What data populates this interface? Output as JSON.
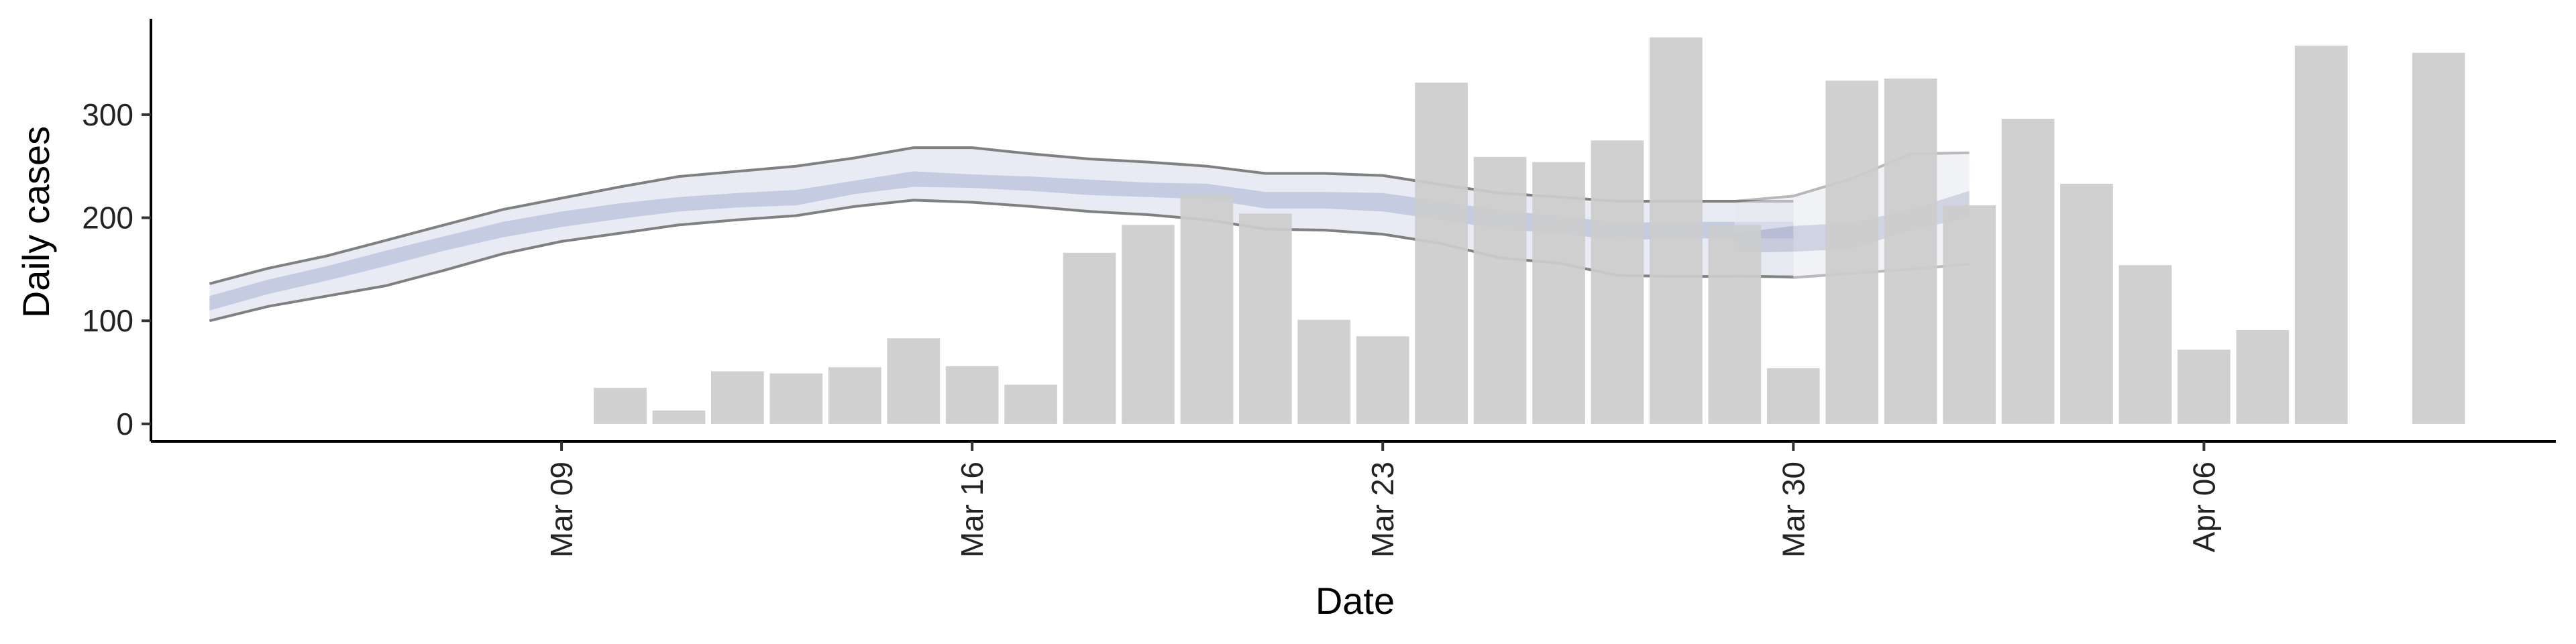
{
  "chart_data": {
    "type": "bar",
    "title": "",
    "xlabel": "Date",
    "ylabel": "Daily cases",
    "ylim": [
      -17,
      393
    ],
    "xlim": [
      "2020-03-02",
      "2020-04-12"
    ],
    "y_ticks": [
      0,
      100,
      200,
      300
    ],
    "x_ticks": [
      {
        "date": "2020-03-09",
        "label": "Mar 09"
      },
      {
        "date": "2020-03-16",
        "label": "Mar 16"
      },
      {
        "date": "2020-03-23",
        "label": "Mar 23"
      },
      {
        "date": "2020-03-30",
        "label": "Mar 30"
      },
      {
        "date": "2020-04-06",
        "label": "Apr 06"
      }
    ],
    "grid": false,
    "legend": "none",
    "colors": {
      "bars": "#cccccc",
      "band_outer": "#e9ebf4",
      "band_inner": "#c5cbe0",
      "bound_line": "#808080",
      "axis": "#000000"
    },
    "bars": [
      {
        "date": "2020-03-10",
        "value": 35
      },
      {
        "date": "2020-03-11",
        "value": 13
      },
      {
        "date": "2020-03-12",
        "value": 51
      },
      {
        "date": "2020-03-13",
        "value": 49
      },
      {
        "date": "2020-03-14",
        "value": 55
      },
      {
        "date": "2020-03-15",
        "value": 83
      },
      {
        "date": "2020-03-16",
        "value": 56
      },
      {
        "date": "2020-03-17",
        "value": 38
      },
      {
        "date": "2020-03-18",
        "value": 166
      },
      {
        "date": "2020-03-19",
        "value": 193
      },
      {
        "date": "2020-03-20",
        "value": 223
      },
      {
        "date": "2020-03-21",
        "value": 204
      },
      {
        "date": "2020-03-22",
        "value": 101
      },
      {
        "date": "2020-03-23",
        "value": 85
      },
      {
        "date": "2020-03-24",
        "value": 331
      },
      {
        "date": "2020-03-25",
        "value": 259
      },
      {
        "date": "2020-03-26",
        "value": 254
      },
      {
        "date": "2020-03-27",
        "value": 275
      },
      {
        "date": "2020-03-28",
        "value": 375
      },
      {
        "date": "2020-03-29",
        "value": 193
      },
      {
        "date": "2020-03-30",
        "value": 54
      },
      {
        "date": "2020-03-31",
        "value": 333
      },
      {
        "date": "2020-04-01",
        "value": 335
      },
      {
        "date": "2020-04-02",
        "value": 212
      },
      {
        "date": "2020-04-03",
        "value": 296
      },
      {
        "date": "2020-04-04",
        "value": 233
      },
      {
        "date": "2020-04-05",
        "value": 154
      },
      {
        "date": "2020-04-06",
        "value": 72
      },
      {
        "date": "2020-04-07",
        "value": 91
      },
      {
        "date": "2020-04-08",
        "value": 367
      },
      {
        "date": "2020-04-10",
        "value": 360
      }
    ],
    "estimate_bands": [
      {
        "name": "",
        "dates": [
          "2020-03-03",
          "2020-03-04",
          "2020-03-05",
          "2020-03-06",
          "2020-03-07",
          "2020-03-08",
          "2020-03-09",
          "2020-03-10",
          "2020-03-11",
          "2020-03-12",
          "2020-03-13",
          "2020-03-14",
          "2020-03-15",
          "2020-03-16",
          "2020-03-17",
          "2020-03-18",
          "2020-03-19",
          "2020-03-20",
          "2020-03-21",
          "2020-03-22",
          "2020-03-23",
          "2020-03-24",
          "2020-03-25",
          "2020-03-26",
          "2020-03-27",
          "2020-03-28",
          "2020-03-29",
          "2020-03-30"
        ],
        "lower": [
          100,
          114,
          124,
          134,
          149,
          165,
          177,
          185,
          193,
          198,
          202,
          211,
          217,
          215,
          211,
          206,
          203,
          198,
          189,
          188,
          184,
          175,
          161,
          156,
          144,
          143,
          143,
          143
        ],
        "upper": [
          136,
          151,
          163,
          178,
          193,
          208,
          219,
          230,
          240,
          245,
          250,
          258,
          268,
          268,
          262,
          257,
          254,
          250,
          243,
          243,
          241,
          232,
          224,
          220,
          216,
          216,
          216,
          216
        ],
        "inner_lower": [
          110,
          126,
          139,
          153,
          168,
          181,
          191,
          199,
          206,
          210,
          212,
          223,
          230,
          229,
          226,
          222,
          220,
          218,
          209,
          209,
          206,
          198,
          189,
          185,
          178,
          180,
          180,
          180
        ],
        "inner_upper": [
          124,
          140,
          153,
          168,
          182,
          196,
          206,
          214,
          220,
          224,
          227,
          236,
          245,
          242,
          240,
          237,
          234,
          233,
          225,
          225,
          224,
          216,
          207,
          202,
          195,
          196,
          196,
          196
        ],
        "fill_outer": "#e9ebf4",
        "fill_inner": "#c5cbe0",
        "opacity": 1
      },
      {
        "name": "",
        "dates": [
          "2020-03-29",
          "2020-03-30",
          "2020-03-31",
          "2020-04-01",
          "2020-04-02"
        ],
        "lower": [
          144,
          142,
          146,
          150,
          155
        ],
        "upper": [
          216,
          221,
          238,
          262,
          263
        ],
        "inner_lower": [
          166,
          167,
          170,
          188,
          200
        ],
        "inner_upper": [
          185,
          192,
          195,
          208,
          226
        ],
        "fill_outer": "#e6e8f0",
        "fill_inner": "#aab2cc",
        "opacity": 0.55
      }
    ]
  }
}
